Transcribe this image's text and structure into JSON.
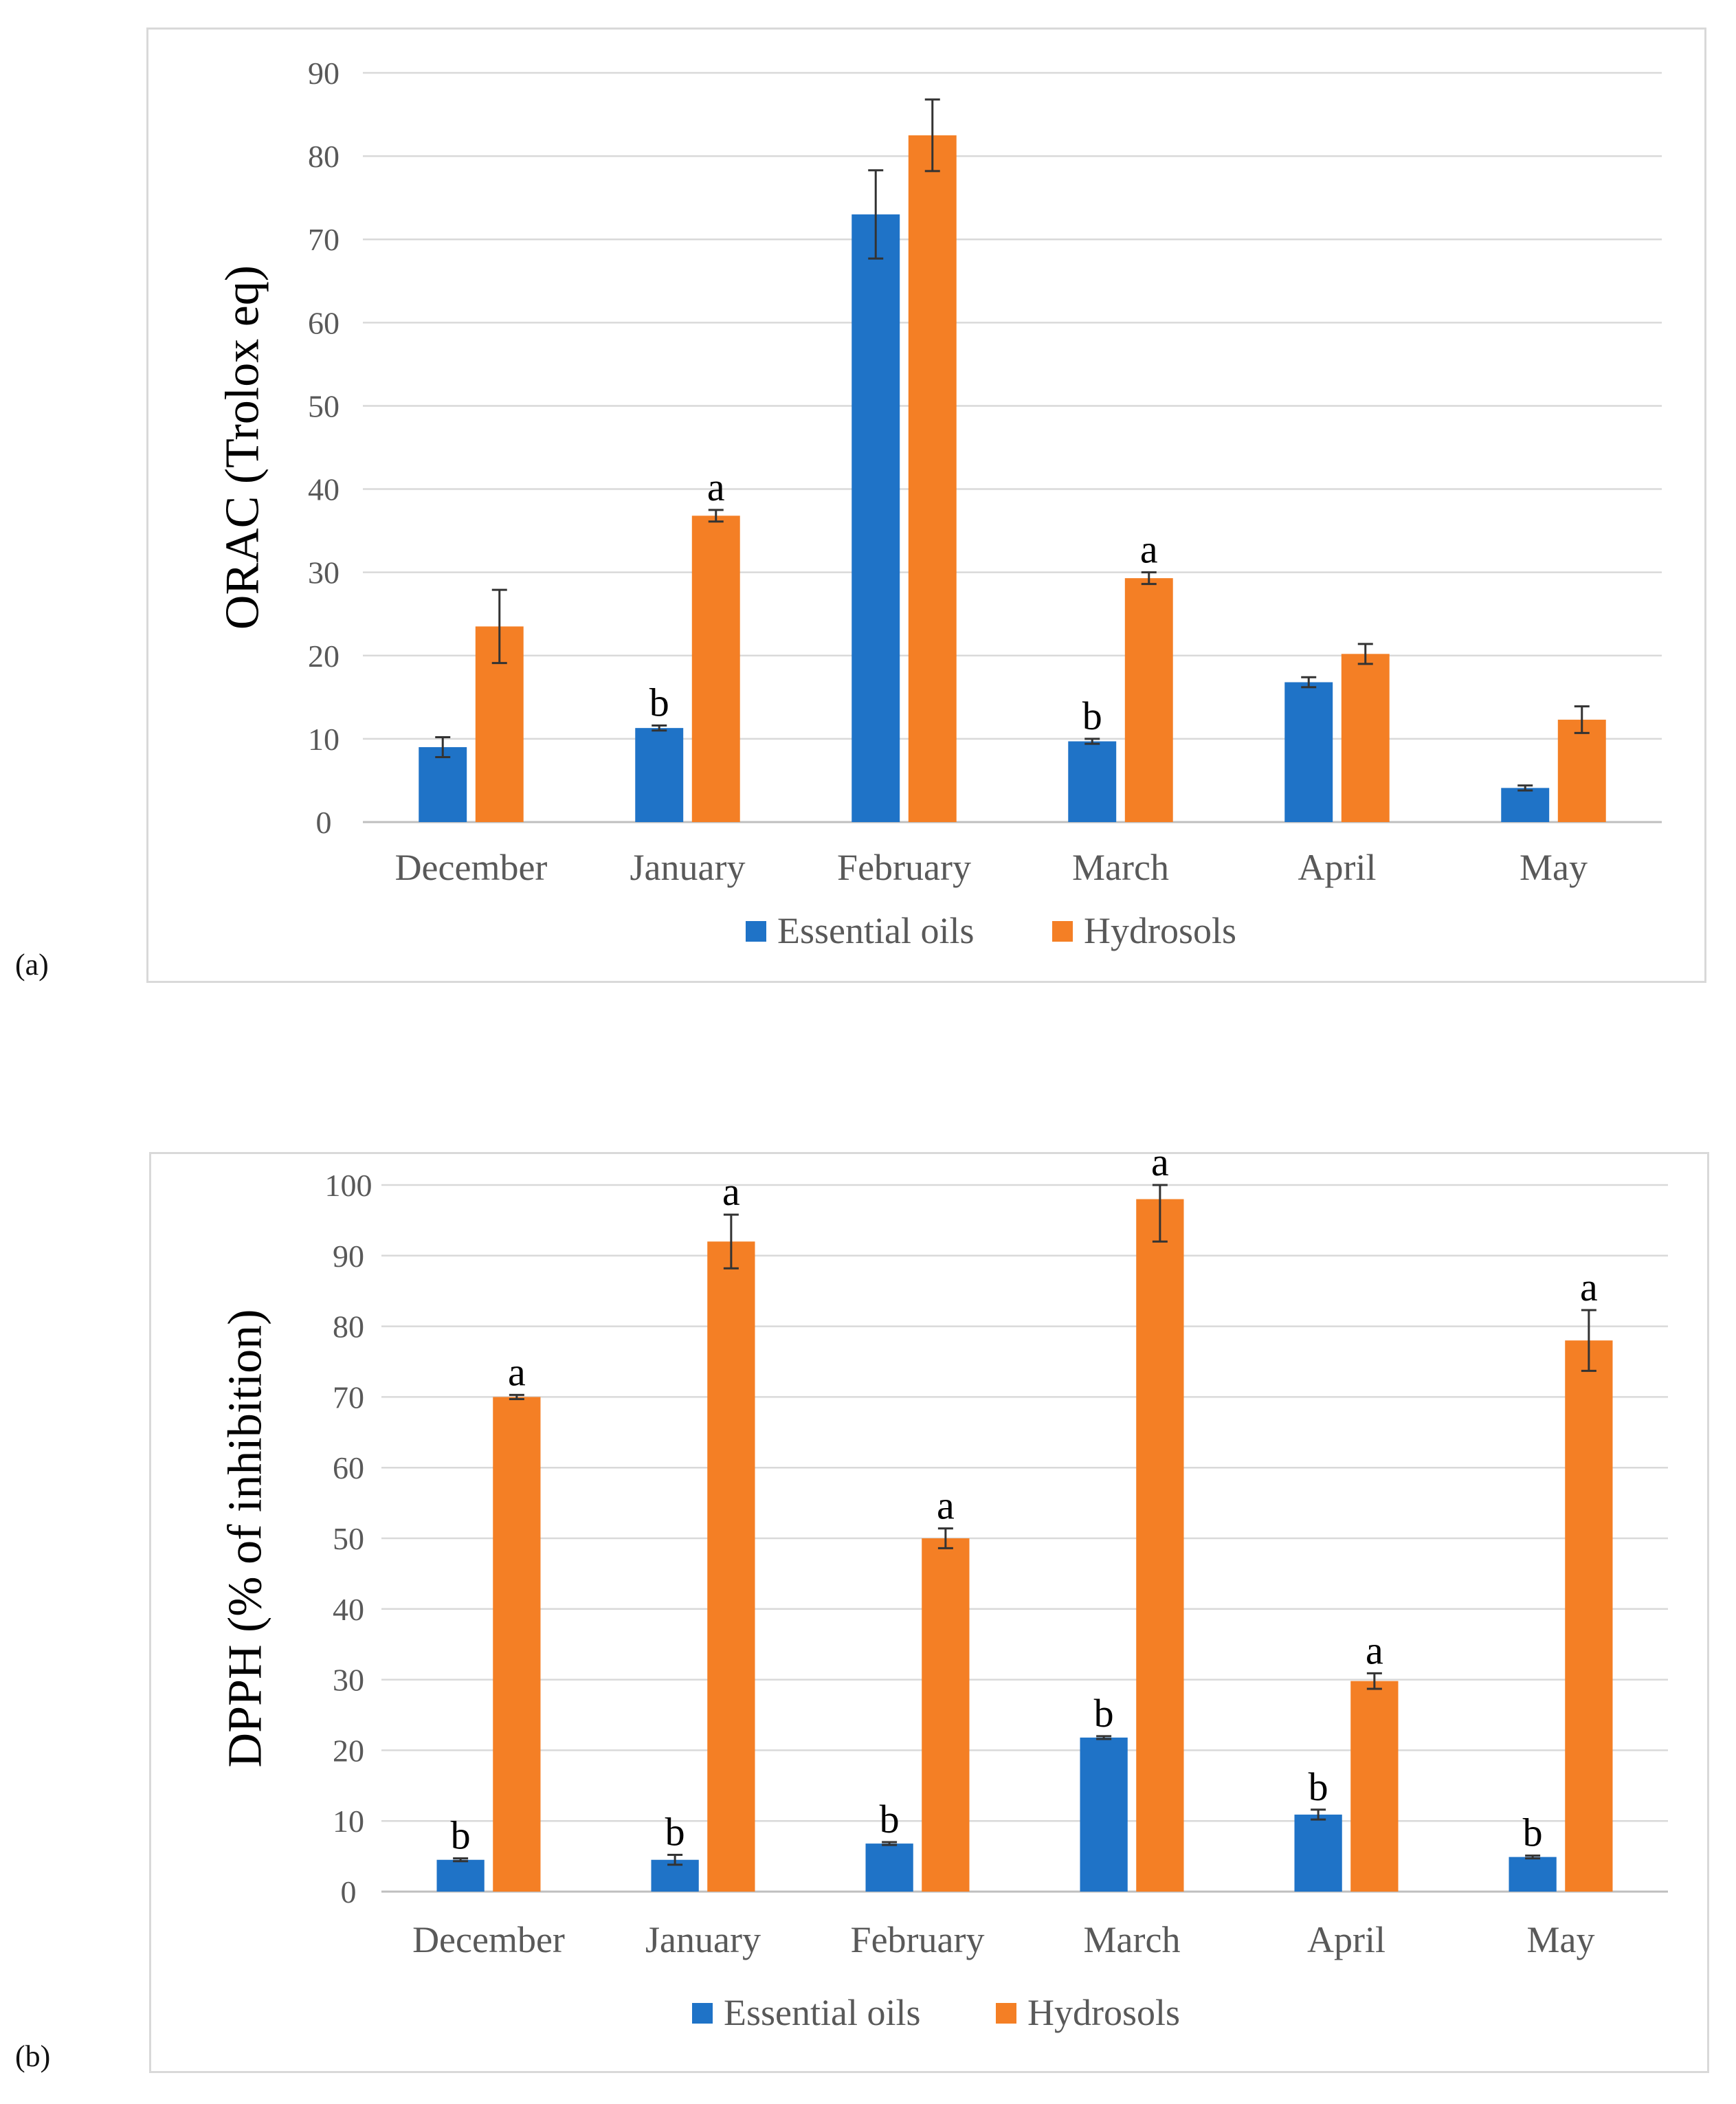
{
  "panels": [
    {
      "label": "(a)"
    },
    {
      "label": "(b)"
    }
  ],
  "colors": {
    "essential_oils": "#1f73c7",
    "hydrosols": "#f47f25"
  },
  "chart_data": [
    {
      "type": "bar",
      "title": "",
      "xlabel": "",
      "ylabel": "ORAC (Trolox eq)",
      "ylim": [
        0,
        90
      ],
      "yticks": [
        0,
        10,
        20,
        30,
        40,
        50,
        60,
        70,
        80,
        90
      ],
      "grid": true,
      "legend_position": "bottom",
      "categories": [
        "December",
        "January",
        "February",
        "March",
        "April",
        "May"
      ],
      "series": [
        {
          "name": "Essential oils",
          "values": [
            9.0,
            11.3,
            73.0,
            9.7,
            16.8,
            4.1
          ],
          "errors": [
            1.2,
            0.3,
            5.3,
            0.3,
            0.6,
            0.3
          ],
          "labels": [
            "",
            "b",
            "",
            "b",
            "",
            ""
          ]
        },
        {
          "name": "Hydrosols",
          "values": [
            23.5,
            36.8,
            82.5,
            29.3,
            20.2,
            12.3
          ],
          "errors": [
            4.4,
            0.7,
            4.3,
            0.7,
            1.2,
            1.6
          ],
          "labels": [
            "",
            "a",
            "",
            "a",
            "",
            ""
          ]
        }
      ]
    },
    {
      "type": "bar",
      "title": "",
      "xlabel": "",
      "ylabel": "DPPH (% of inhibition)",
      "ylim": [
        0,
        100
      ],
      "yticks": [
        0,
        10,
        20,
        30,
        40,
        50,
        60,
        70,
        80,
        90,
        100
      ],
      "grid": true,
      "legend_position": "bottom",
      "categories": [
        "December",
        "January",
        "February",
        "March",
        "April",
        "May"
      ],
      "series": [
        {
          "name": "Essential oils",
          "values": [
            4.5,
            4.5,
            6.8,
            21.8,
            10.9,
            4.9
          ],
          "errors": [
            0.2,
            0.7,
            0.2,
            0.2,
            0.7,
            0.2
          ],
          "labels": [
            "b",
            "b",
            "b",
            "b",
            "b",
            "b"
          ]
        },
        {
          "name": "Hydrosols",
          "values": [
            70.0,
            92.0,
            50.0,
            98.0,
            29.8,
            78.0
          ],
          "errors": [
            0.3,
            3.8,
            1.4,
            6.0,
            1.1,
            4.3
          ],
          "labels": [
            "a",
            "a",
            "a",
            "a",
            "a",
            "a"
          ]
        }
      ]
    }
  ]
}
